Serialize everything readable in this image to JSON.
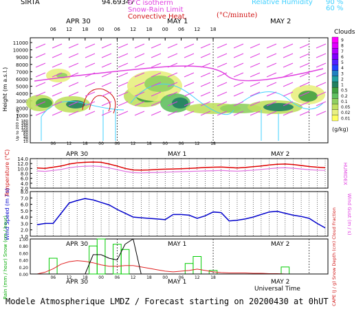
{
  "header": {
    "station": "SIRTA",
    "coords": "94.69347",
    "legend_0c": "0°C isotherm",
    "legend_snow": "Snow-Rain Limit",
    "legend_conv": "Convective Heat.",
    "legend_conv_unit": "(°C/minute)",
    "legend_rh": "Relative Humidity",
    "rh_90": "90 %",
    "rh_60": "60 %",
    "colors": {
      "isotherm": "#e040e0",
      "snow": "#e040e0",
      "conv": "#d01010",
      "rh": "#40d0ff"
    }
  },
  "time_axis": {
    "day_labels": [
      "APR 30",
      "MAY 1",
      "MAY 2"
    ],
    "hour_ticks": [
      "06",
      "12",
      "18",
      "00",
      "06",
      "12",
      "18",
      "00",
      "06",
      "12",
      "18"
    ],
    "xlabel": "Universal Time"
  },
  "footer": "Modele Atmospherique LMDZ / Forecast starting on 20200430 at 0hUT",
  "chart_data": [
    {
      "type": "heatmap",
      "name": "clouds",
      "ylabel": "Height (m a.s.l.)",
      "ylabel_low": "Up to 200 m a.g.l.",
      "yticks_upper": [
        "11000",
        "10000",
        "9000",
        "8000",
        "7000",
        "6000",
        "5000",
        "4000",
        "3000",
        "2000",
        "1000"
      ],
      "yticks_lower": [
        "180",
        "160",
        "140",
        "120",
        "100",
        "80",
        "60",
        "40",
        "20",
        "10"
      ],
      "colorbar_title": "Clouds",
      "colorbar_unit": "(g/kg)",
      "colorbar_labels": [
        "9",
        "8",
        "7",
        "6",
        "5",
        "4",
        "3",
        "2",
        "1",
        "0.5",
        "0.2",
        "0.1",
        "0.05",
        "0.02",
        "0.01"
      ],
      "colorbar_colors": [
        "#ff00ff",
        "#e000ff",
        "#b000ff",
        "#8000ff",
        "#5020ff",
        "#2040ff",
        "#2080c0",
        "#20a0a0",
        "#208060",
        "#40a040",
        "#60c060",
        "#90d060",
        "#c0e060",
        "#e8f080",
        "#ffff60"
      ]
    },
    {
      "type": "line",
      "name": "temperature",
      "ylabel": "Temperature (°C)",
      "ylabel_right": "HUMIDEX",
      "yticks": [
        "14.0",
        "12.0",
        "10.0",
        "8.0",
        "6.0",
        "4.0",
        "2.0"
      ],
      "ylim": [
        2,
        14
      ],
      "series": [
        {
          "color": "#e00000",
          "values": [
            10.2,
            10.0,
            10.5,
            11.0,
            11.8,
            12.3,
            12.5,
            12.6,
            12.5,
            11.8,
            11.0,
            10.0,
            9.4,
            9.3,
            9.4,
            9.6,
            9.7,
            9.8,
            9.9,
            10.0,
            10.2,
            10.4,
            10.5,
            10.6,
            10.4,
            10.2,
            10.4,
            10.7,
            11.0,
            11.4,
            11.7,
            11.8,
            11.6,
            11.2,
            10.8,
            10.5,
            10.3
          ]
        },
        {
          "color": "#e070e0",
          "values": [
            9.0,
            8.8,
            9.2,
            9.6,
            10.3,
            10.7,
            10.9,
            11.0,
            10.8,
            10.2,
            9.5,
            8.8,
            8.3,
            8.2,
            8.3,
            8.4,
            8.5,
            8.6,
            8.7,
            8.8,
            8.9,
            9.0,
            9.1,
            9.2,
            9.0,
            8.9,
            9.1,
            9.3,
            9.6,
            9.9,
            10.2,
            10.3,
            10.1,
            9.8,
            9.5,
            9.3,
            9.2
          ]
        }
      ]
    },
    {
      "type": "line",
      "name": "wind",
      "ylabel": "Wind Speed (m / s)",
      "ylabel_right": "Wind Gust (m / s)",
      "yticks": [
        "8.0",
        "7.0",
        "6.0",
        "5.0",
        "4.0",
        "3.0",
        "2.0",
        "1.0"
      ],
      "ylim": [
        1,
        8
      ],
      "series": [
        {
          "color": "#0000cc",
          "values": [
            2.8,
            3.0,
            3.0,
            4.6,
            6.2,
            6.6,
            6.9,
            6.7,
            6.3,
            5.9,
            5.2,
            4.6,
            4.0,
            3.9,
            3.8,
            3.7,
            3.6,
            4.4,
            4.4,
            4.3,
            3.8,
            4.2,
            4.8,
            4.7,
            3.4,
            3.5,
            3.7,
            4.0,
            4.4,
            4.8,
            4.9,
            4.6,
            4.3,
            4.1,
            3.8,
            3.0,
            2.3
          ]
        }
      ]
    },
    {
      "type": "bar",
      "name": "precipitation",
      "ylabel": "Rain (mm / hour) Snow (cm / hour)",
      "ylabel_right": "CAPE (J / g) Snow Depth (cm) Cloud Fraction",
      "yticks": [
        "1.00",
        "0.80",
        "0.60",
        "0.40",
        "0.20",
        "0.00"
      ],
      "ylim": [
        0,
        1
      ],
      "series": [
        {
          "name": "",
          "color": "#00cc00",
          "values": [
            0.0,
            0.0,
            0.45,
            0.0,
            0.0,
            0.0,
            0.0,
            0.8,
            1.0,
            0.0,
            0.85,
            0.7,
            0.0,
            0.0,
            0.0,
            0.0,
            0.0,
            0.0,
            0.0,
            0.3,
            0.5,
            0.0,
            0.1,
            0.0,
            0.0,
            0.0,
            0.0,
            0.0,
            0.0,
            0.0,
            0.0,
            0.2,
            0.0,
            0.0,
            0.0,
            0.0,
            0.0
          ]
        },
        {
          "name": "",
          "color": "#e02020",
          "values": [
            0.0,
            0.05,
            0.15,
            0.28,
            0.35,
            0.38,
            0.36,
            0.32,
            0.26,
            0.22,
            0.22,
            0.24,
            0.24,
            0.2,
            0.16,
            0.12,
            0.08,
            0.06,
            0.08,
            0.1,
            0.14,
            0.1,
            0.06,
            0.04,
            0.03,
            0.03,
            0.03,
            0.02,
            0.02,
            0.01,
            0.01,
            0.0,
            0.0,
            0.0,
            0.0,
            0.0,
            0.0
          ]
        },
        {
          "name": "",
          "color": "#000000",
          "values": [
            0.0,
            0.0,
            0.0,
            0.0,
            0.0,
            0.0,
            0.0,
            0.55,
            0.55,
            0.45,
            0.4,
            0.85,
            1.0,
            0.0,
            0.0,
            0.0,
            0.0,
            0.0,
            0.0,
            0.0,
            0.0,
            0.0,
            0.0,
            0.0,
            0.0,
            0.0,
            0.0,
            0.0,
            0.0,
            0.0,
            0.0,
            0.0,
            0.0,
            0.0,
            0.0,
            0.0,
            0.0
          ]
        }
      ]
    }
  ]
}
